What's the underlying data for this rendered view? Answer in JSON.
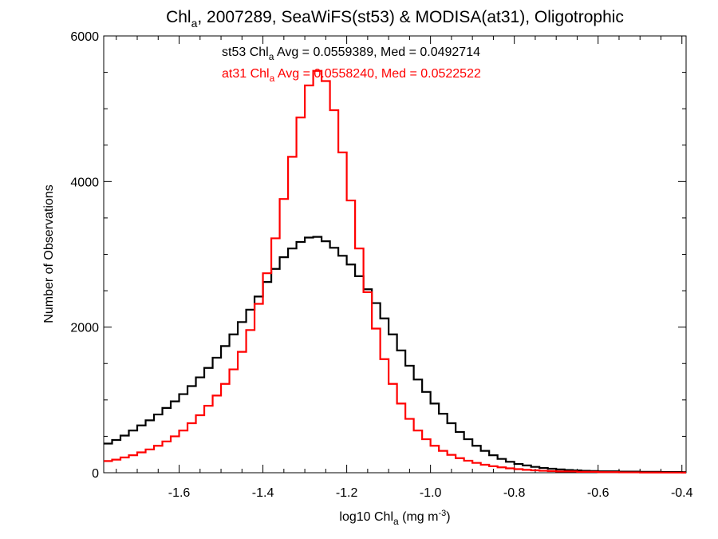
{
  "chart_data": {
    "type": "line",
    "title": {
      "pre": "Chl",
      "sub": "a",
      "post": ", 2007289, SeaWiFS(st53) & MODISA(at31), Oligotrophic"
    },
    "xlabel": {
      "pre": "log10 Chl",
      "sub": "a",
      "mid": " (mg m",
      "sup": "-3",
      "post": ")"
    },
    "ylabel": "Number of Observations",
    "xlim": [
      -1.78,
      -0.39
    ],
    "ylim": [
      0,
      6000
    ],
    "x_ticks": [
      -1.6,
      -1.4,
      -1.2,
      -1.0,
      -0.8,
      -0.6,
      -0.4
    ],
    "x_tick_labels": [
      "-1.6",
      "-1.4",
      "-1.2",
      "-1.0",
      "-0.8",
      "-0.6",
      "-0.4"
    ],
    "y_ticks": [
      0,
      2000,
      4000,
      6000
    ],
    "y_tick_labels": [
      "0",
      "2000",
      "4000",
      "6000"
    ],
    "grid": false,
    "step": true,
    "legend": [
      {
        "pre": "st53 Chl",
        "sub": "a",
        "post": " Avg = 0.0559389, Med = 0.0492714",
        "color": "#000000"
      },
      {
        "pre": "at31 Chl",
        "sub": "a",
        "post": " Avg = 0.0558240, Med = 0.0522522",
        "color": "#ff0000"
      }
    ],
    "series": [
      {
        "name": "st53",
        "color": "#000000",
        "points": [
          [
            -1.78,
            400
          ],
          [
            -1.76,
            450
          ],
          [
            -1.74,
            510
          ],
          [
            -1.72,
            580
          ],
          [
            -1.7,
            650
          ],
          [
            -1.68,
            720
          ],
          [
            -1.66,
            800
          ],
          [
            -1.64,
            890
          ],
          [
            -1.62,
            980
          ],
          [
            -1.6,
            1080
          ],
          [
            -1.58,
            1190
          ],
          [
            -1.56,
            1310
          ],
          [
            -1.54,
            1440
          ],
          [
            -1.52,
            1580
          ],
          [
            -1.5,
            1740
          ],
          [
            -1.48,
            1900
          ],
          [
            -1.46,
            2070
          ],
          [
            -1.44,
            2240
          ],
          [
            -1.42,
            2420
          ],
          [
            -1.4,
            2620
          ],
          [
            -1.38,
            2800
          ],
          [
            -1.36,
            2960
          ],
          [
            -1.34,
            3080
          ],
          [
            -1.32,
            3170
          ],
          [
            -1.3,
            3230
          ],
          [
            -1.28,
            3240
          ],
          [
            -1.26,
            3180
          ],
          [
            -1.24,
            3090
          ],
          [
            -1.22,
            2980
          ],
          [
            -1.2,
            2860
          ],
          [
            -1.18,
            2700
          ],
          [
            -1.16,
            2520
          ],
          [
            -1.14,
            2330
          ],
          [
            -1.12,
            2120
          ],
          [
            -1.1,
            1900
          ],
          [
            -1.08,
            1680
          ],
          [
            -1.06,
            1470
          ],
          [
            -1.04,
            1280
          ],
          [
            -1.02,
            1110
          ],
          [
            -1.0,
            950
          ],
          [
            -0.98,
            810
          ],
          [
            -0.96,
            680
          ],
          [
            -0.94,
            560
          ],
          [
            -0.92,
            460
          ],
          [
            -0.9,
            370
          ],
          [
            -0.88,
            300
          ],
          [
            -0.86,
            240
          ],
          [
            -0.84,
            190
          ],
          [
            -0.82,
            150
          ],
          [
            -0.8,
            120
          ],
          [
            -0.78,
            100
          ],
          [
            -0.76,
            80
          ],
          [
            -0.74,
            65
          ],
          [
            -0.72,
            55
          ],
          [
            -0.7,
            45
          ],
          [
            -0.68,
            38
          ],
          [
            -0.66,
            32
          ],
          [
            -0.64,
            27
          ],
          [
            -0.62,
            23
          ],
          [
            -0.6,
            20
          ],
          [
            -0.55,
            15
          ],
          [
            -0.5,
            12
          ],
          [
            -0.45,
            10
          ],
          [
            -0.4,
            8
          ]
        ]
      },
      {
        "name": "at31",
        "color": "#ff0000",
        "points": [
          [
            -1.78,
            160
          ],
          [
            -1.76,
            180
          ],
          [
            -1.74,
            210
          ],
          [
            -1.72,
            240
          ],
          [
            -1.7,
            280
          ],
          [
            -1.68,
            320
          ],
          [
            -1.66,
            370
          ],
          [
            -1.64,
            430
          ],
          [
            -1.62,
            500
          ],
          [
            -1.6,
            580
          ],
          [
            -1.58,
            680
          ],
          [
            -1.56,
            790
          ],
          [
            -1.54,
            920
          ],
          [
            -1.52,
            1060
          ],
          [
            -1.5,
            1220
          ],
          [
            -1.48,
            1420
          ],
          [
            -1.46,
            1660
          ],
          [
            -1.44,
            1960
          ],
          [
            -1.42,
            2320
          ],
          [
            -1.4,
            2740
          ],
          [
            -1.38,
            3220
          ],
          [
            -1.36,
            3760
          ],
          [
            -1.34,
            4340
          ],
          [
            -1.32,
            4880
          ],
          [
            -1.3,
            5320
          ],
          [
            -1.28,
            5520
          ],
          [
            -1.26,
            5380
          ],
          [
            -1.24,
            4980
          ],
          [
            -1.22,
            4400
          ],
          [
            -1.2,
            3740
          ],
          [
            -1.18,
            3080
          ],
          [
            -1.16,
            2480
          ],
          [
            -1.14,
            1980
          ],
          [
            -1.12,
            1560
          ],
          [
            -1.1,
            1220
          ],
          [
            -1.08,
            950
          ],
          [
            -1.06,
            740
          ],
          [
            -1.04,
            580
          ],
          [
            -1.02,
            460
          ],
          [
            -1.0,
            370
          ],
          [
            -0.98,
            300
          ],
          [
            -0.96,
            245
          ],
          [
            -0.94,
            200
          ],
          [
            -0.92,
            165
          ],
          [
            -0.9,
            135
          ],
          [
            -0.88,
            110
          ],
          [
            -0.86,
            90
          ],
          [
            -0.84,
            74
          ],
          [
            -0.82,
            60
          ],
          [
            -0.8,
            49
          ],
          [
            -0.78,
            40
          ],
          [
            -0.76,
            33
          ],
          [
            -0.74,
            27
          ],
          [
            -0.72,
            22
          ],
          [
            -0.7,
            18
          ],
          [
            -0.65,
            12
          ],
          [
            -0.6,
            8
          ],
          [
            -0.55,
            5
          ],
          [
            -0.5,
            3
          ],
          [
            -0.45,
            2
          ],
          [
            -0.4,
            1
          ]
        ]
      }
    ]
  }
}
